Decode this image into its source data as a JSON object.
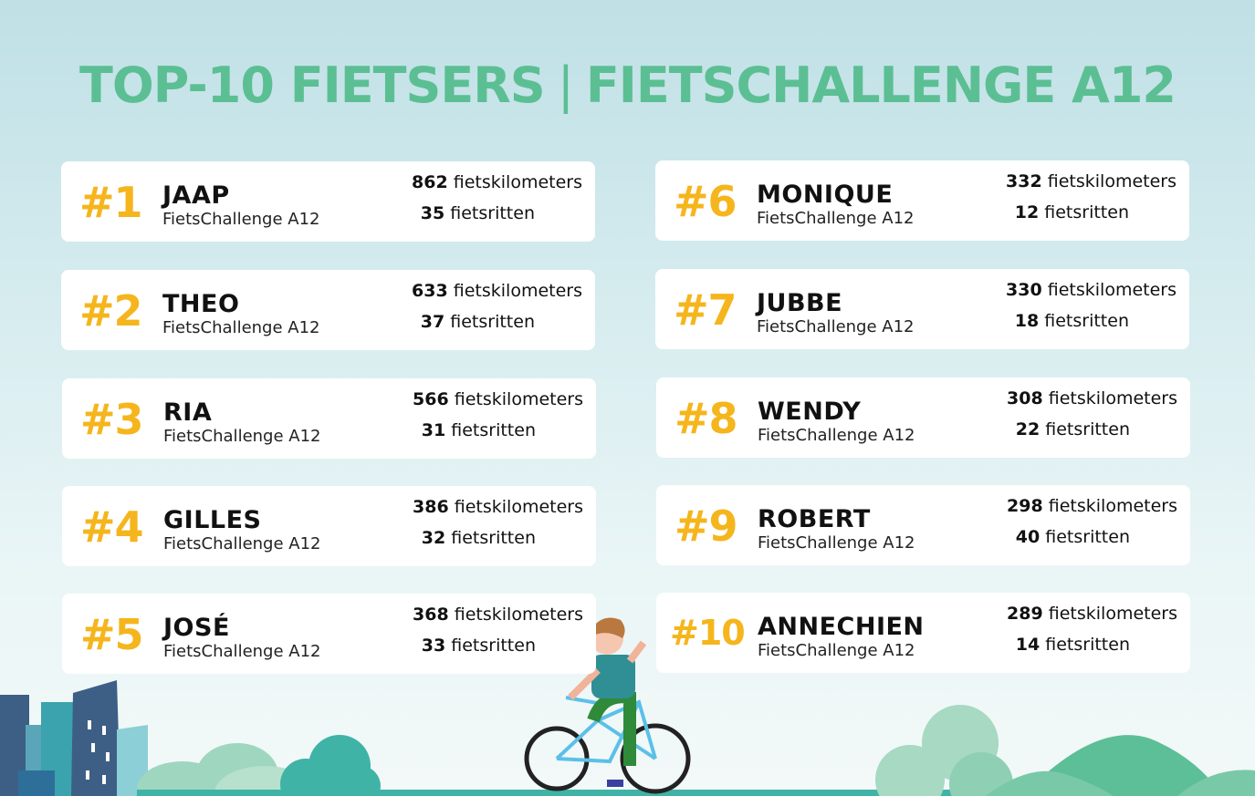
{
  "title": {
    "left": "TOP-10 FIETSERS",
    "separator": "|",
    "right": "FIETSCHALLENGE A12"
  },
  "colors": {
    "title": "#5bbf93",
    "rank": "#f5b51c",
    "card": "#ffffff"
  },
  "km_unit": "fietskilometers",
  "rides_unit": "fietsritten",
  "entries": [
    {
      "rank": "#1",
      "name": "JAAP",
      "team": "FietsChallenge A12",
      "km": "862",
      "rides": "35"
    },
    {
      "rank": "#2",
      "name": "THEO",
      "team": "FietsChallenge A12",
      "km": "633",
      "rides": "37"
    },
    {
      "rank": "#3",
      "name": "RIA",
      "team": "FietsChallenge A12",
      "km": "566",
      "rides": "31"
    },
    {
      "rank": "#4",
      "name": "GILLES",
      "team": "FietsChallenge A12",
      "km": "386",
      "rides": "32"
    },
    {
      "rank": "#5",
      "name": "JOSÉ",
      "team": "FietsChallenge A12",
      "km": "368",
      "rides": "33"
    },
    {
      "rank": "#6",
      "name": "MONIQUE",
      "team": "FietsChallenge A12",
      "km": "332",
      "rides": "12"
    },
    {
      "rank": "#7",
      "name": "JUBBE",
      "team": "FietsChallenge A12",
      "km": "330",
      "rides": "18"
    },
    {
      "rank": "#8",
      "name": "WENDY",
      "team": "FietsChallenge A12",
      "km": "308",
      "rides": "22"
    },
    {
      "rank": "#9",
      "name": "ROBERT",
      "team": "FietsChallenge A12",
      "km": "298",
      "rides": "40"
    },
    {
      "rank": "#10",
      "name": "ANNECHIEN",
      "team": "FietsChallenge A12",
      "km": "289",
      "rides": "14"
    }
  ],
  "illustrations": [
    "city-buildings-illustration",
    "trees-illustration",
    "cyclist-illustration",
    "hills-illustration"
  ]
}
